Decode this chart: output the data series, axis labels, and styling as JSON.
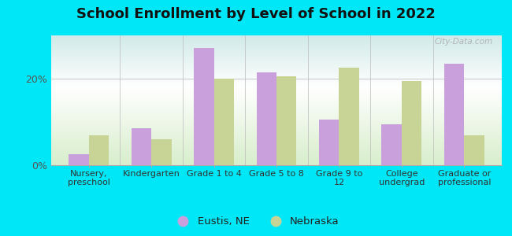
{
  "title": "School Enrollment by Level of School in 2022",
  "categories": [
    "Nursery,\npreschool",
    "Kindergarten",
    "Grade 1 to 4",
    "Grade 5 to 8",
    "Grade 9 to\n12",
    "College\nundergrad",
    "Graduate or\nprofessional"
  ],
  "eustis_values": [
    2.5,
    8.5,
    27.0,
    21.5,
    10.5,
    9.5,
    23.5
  ],
  "nebraska_values": [
    7.0,
    6.0,
    20.0,
    20.5,
    22.5,
    19.5,
    7.0
  ],
  "eustis_color": "#c9a0dc",
  "nebraska_color": "#c8d496",
  "background_outer": "#00e8f8",
  "plot_bg_top": "#d0eae8",
  "plot_bg_bottom": "#d8eecc",
  "ylim": [
    0,
    30
  ],
  "ytick_labels": [
    "0%",
    "20%"
  ],
  "ytick_values": [
    0,
    20
  ],
  "legend_labels": [
    "Eustis, NE",
    "Nebraska"
  ],
  "watermark": "City-Data.com",
  "title_fontsize": 13,
  "axis_label_fontsize": 8,
  "legend_fontsize": 9.5,
  "bar_width": 0.32
}
